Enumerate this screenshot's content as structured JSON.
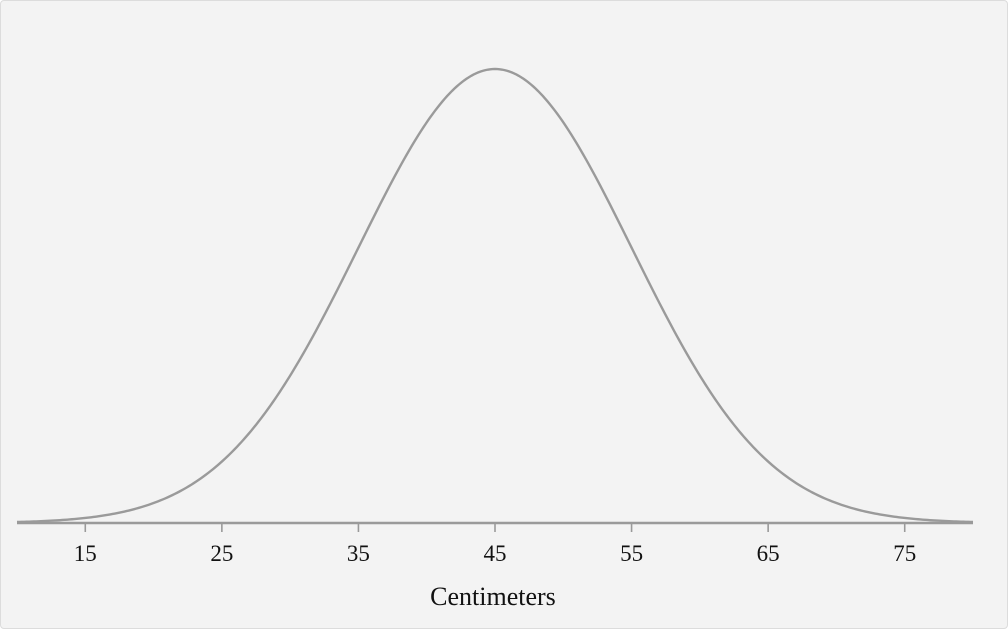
{
  "chart_data": {
    "type": "line",
    "title": "",
    "xlabel": "Centimeters",
    "ylabel": "",
    "distribution": "normal",
    "mean": 45,
    "sd": 10,
    "xlim": [
      10,
      80
    ],
    "x_ticks": [
      15,
      25,
      35,
      45,
      55,
      65,
      75
    ],
    "grid": false,
    "legend": "none",
    "colors": {
      "curve": "#9a9a9a",
      "axis": "#9a9a9a",
      "background": "#f3f3f3"
    }
  }
}
